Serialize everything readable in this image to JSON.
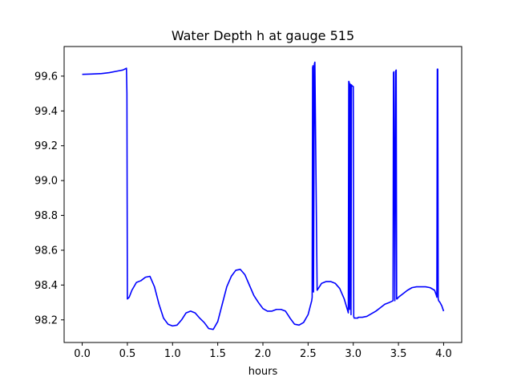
{
  "chart_data": {
    "type": "line",
    "title": "Water Depth h at gauge 515",
    "xlabel": "hours",
    "ylabel": "",
    "xlim": [
      -0.2,
      4.2
    ],
    "ylim": [
      98.07,
      99.77
    ],
    "xticks": [
      0.0,
      0.5,
      1.0,
      1.5,
      2.0,
      2.5,
      3.0,
      3.5,
      4.0
    ],
    "xtick_labels": [
      "0.0",
      "0.5",
      "1.0",
      "1.5",
      "2.0",
      "2.5",
      "3.0",
      "3.5",
      "4.0"
    ],
    "yticks": [
      98.2,
      98.4,
      98.6,
      98.8,
      99.0,
      99.2,
      99.4,
      99.6
    ],
    "ytick_labels": [
      "98.2",
      "98.4",
      "98.6",
      "98.8",
      "99.0",
      "99.2",
      "99.4",
      "99.6"
    ],
    "grid": false,
    "series": [
      {
        "color": "#0000ff",
        "x": [
          0.0,
          0.1,
          0.2,
          0.3,
          0.4,
          0.45,
          0.49,
          0.495,
          0.5,
          0.52,
          0.55,
          0.6,
          0.65,
          0.7,
          0.75,
          0.8,
          0.85,
          0.9,
          0.95,
          1.0,
          1.05,
          1.1,
          1.15,
          1.2,
          1.25,
          1.3,
          1.35,
          1.4,
          1.45,
          1.5,
          1.55,
          1.6,
          1.65,
          1.7,
          1.75,
          1.8,
          1.85,
          1.9,
          1.95,
          2.0,
          2.05,
          2.1,
          2.15,
          2.2,
          2.25,
          2.3,
          2.35,
          2.4,
          2.45,
          2.5,
          2.54,
          2.545,
          2.55,
          2.555,
          2.56,
          2.57,
          2.575,
          2.6,
          2.65,
          2.7,
          2.75,
          2.8,
          2.85,
          2.9,
          2.94,
          2.945,
          2.95,
          2.955,
          2.96,
          2.965,
          2.97,
          2.975,
          2.98,
          2.985,
          3.0,
          3.005,
          3.01,
          3.05,
          3.055,
          3.06,
          3.1,
          3.15,
          3.2,
          3.25,
          3.3,
          3.35,
          3.4,
          3.44,
          3.445,
          3.45,
          3.46,
          3.47,
          3.475,
          3.48,
          3.485,
          3.5,
          3.55,
          3.6,
          3.65,
          3.7,
          3.75,
          3.8,
          3.85,
          3.9,
          3.92,
          3.925,
          3.93,
          3.935,
          3.94,
          3.945,
          3.96,
          3.98,
          4.0
        ],
        "y": [
          99.61,
          99.612,
          99.614,
          99.62,
          99.63,
          99.635,
          99.645,
          99.5,
          98.32,
          98.33,
          98.37,
          98.415,
          98.425,
          98.445,
          98.45,
          98.39,
          98.29,
          98.21,
          98.175,
          98.165,
          98.17,
          98.2,
          98.24,
          98.25,
          98.24,
          98.21,
          98.185,
          98.15,
          98.145,
          98.19,
          98.29,
          98.39,
          98.45,
          98.485,
          98.49,
          98.46,
          98.4,
          98.34,
          98.3,
          98.265,
          98.25,
          98.25,
          98.26,
          98.26,
          98.25,
          98.21,
          98.175,
          98.17,
          98.185,
          98.23,
          98.31,
          98.33,
          99.65,
          99.66,
          98.36,
          99.67,
          99.68,
          98.37,
          98.41,
          98.42,
          98.42,
          98.41,
          98.38,
          98.32,
          98.25,
          98.24,
          99.57,
          99.565,
          98.26,
          99.555,
          99.55,
          98.23,
          99.55,
          99.545,
          99.54,
          98.22,
          98.21,
          98.21,
          98.215,
          98.215,
          98.215,
          98.22,
          98.235,
          98.25,
          98.27,
          98.29,
          98.3,
          98.31,
          99.62,
          99.625,
          98.31,
          99.63,
          99.635,
          98.32,
          98.32,
          98.33,
          98.35,
          98.37,
          98.385,
          98.39,
          98.39,
          98.39,
          98.385,
          98.37,
          98.34,
          98.33,
          99.64,
          99.64,
          98.32,
          98.31,
          98.3,
          98.28,
          98.25
        ]
      }
    ]
  }
}
